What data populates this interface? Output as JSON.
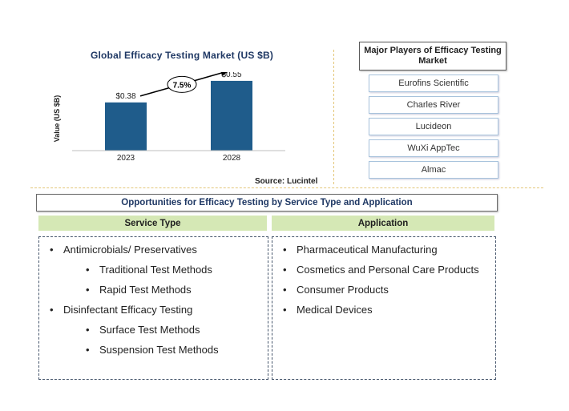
{
  "chart_data": {
    "type": "bar",
    "title": "Global  Efficacy  Testing  Market  (US $B)",
    "ylabel": "Value (US $B)",
    "categories": [
      "2023",
      "2028"
    ],
    "values": [
      0.38,
      0.55
    ],
    "value_labels": [
      "$0.38",
      "$0.55"
    ],
    "cagr_label": "7.5%",
    "bar_color": "#1f5c8b",
    "ylim": [
      0,
      0.6
    ]
  },
  "source": "Source: Lucintel",
  "players": {
    "title": "Major Players of Efficacy Testing Market",
    "items": [
      "Eurofins Scientific",
      "Charles River",
      "Lucideon",
      "WuXi AppTec",
      "Almac"
    ]
  },
  "opportunities": {
    "title": "Opportunities for Efficacy Testing by Service Type and Application",
    "service_type": {
      "heading": "Service Type",
      "items": [
        {
          "text": "Antimicrobials/ Preservatives",
          "level": 0
        },
        {
          "text": "Traditional Test Methods",
          "level": 1
        },
        {
          "text": "Rapid Test Methods",
          "level": 1
        },
        {
          "text": "Disinfectant Efficacy Testing",
          "level": 0
        },
        {
          "text": "Surface Test Methods",
          "level": 1
        },
        {
          "text": "Suspension Test Methods",
          "level": 1
        }
      ]
    },
    "application": {
      "heading": "Application",
      "items": [
        {
          "text": "Pharmaceutical Manufacturing",
          "level": 0
        },
        {
          "text": "Cosmetics and Personal Care Products",
          "level": 0
        },
        {
          "text": "Consumer Products",
          "level": 0
        },
        {
          "text": "Medical Devices",
          "level": 0
        }
      ]
    }
  },
  "colors": {
    "accent_green": "#d5e8b5",
    "title_blue": "#1f3864",
    "separator": "#e3c77a"
  }
}
